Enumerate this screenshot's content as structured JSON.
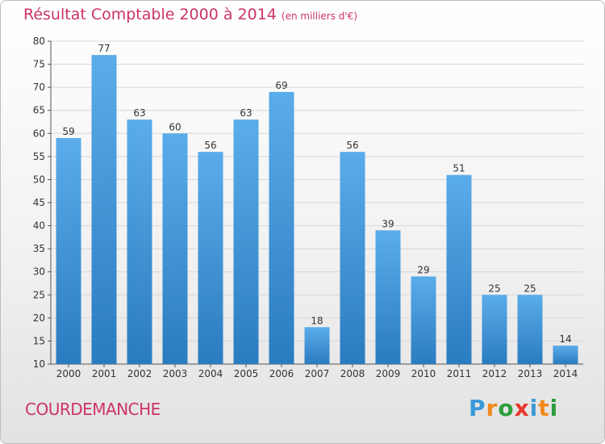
{
  "header": {
    "title": "Résultat Comptable 2000 à 2014",
    "unit": "(en milliers d'€)"
  },
  "footer": {
    "place": "COURDEMANCHE",
    "logo_letters": [
      {
        "ch": "P",
        "color": "#3a9ad9"
      },
      {
        "ch": "r",
        "color": "#f08a1c"
      },
      {
        "ch": "o",
        "color": "#2e9e3e"
      },
      {
        "ch": "x",
        "color": "#e8392c"
      },
      {
        "ch": "i",
        "color": "#3a9ad9"
      },
      {
        "ch": "t",
        "color": "#f08a1c"
      },
      {
        "ch": "i",
        "color": "#2e9e3e"
      }
    ]
  },
  "colors": {
    "title": "#cc3366",
    "bar_top": "#5aacea",
    "bar_bottom": "#2a7cc0",
    "grid": "#d6d6d6"
  },
  "chart_data": {
    "type": "bar",
    "categories": [
      "2000",
      "2001",
      "2002",
      "2003",
      "2004",
      "2005",
      "2006",
      "2007",
      "2008",
      "2009",
      "2010",
      "2011",
      "2012",
      "2013",
      "2014"
    ],
    "values": [
      59,
      77,
      63,
      60,
      56,
      63,
      69,
      18,
      56,
      39,
      29,
      51,
      25,
      25,
      14
    ],
    "ylim": [
      10,
      80
    ],
    "yticks": [
      10,
      15,
      20,
      25,
      30,
      35,
      40,
      45,
      50,
      55,
      60,
      65,
      70,
      75,
      80
    ],
    "grid": true,
    "xlabel": "",
    "ylabel": ""
  }
}
